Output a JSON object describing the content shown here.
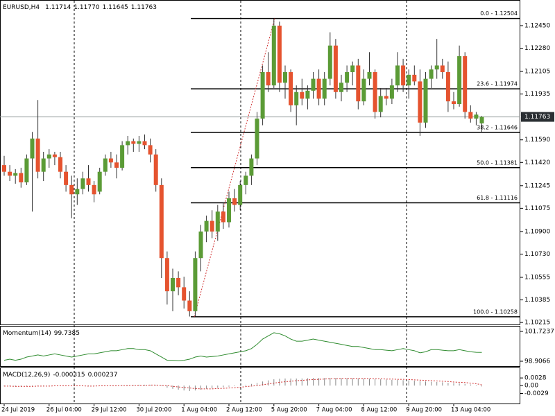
{
  "chart_data": [
    {
      "type": "candlestick",
      "title": "EURUSD,H4",
      "ohlc_labels": [
        "1.11714",
        "1.11770",
        "1.11645",
        "1.11763"
      ],
      "categories": [
        "24 Jul 2019",
        null,
        null,
        null,
        null,
        null,
        null,
        null,
        "26 Jul 04:00",
        null,
        null,
        null,
        null,
        null,
        null,
        null,
        "29 Jul 12:00",
        null,
        null,
        null,
        null,
        null,
        null,
        null,
        "30 Jul 20:00",
        null,
        null,
        null,
        null,
        null,
        null,
        null,
        "1 Aug 04:00",
        null,
        null,
        null,
        null,
        null,
        null,
        null,
        "2 Aug 12:00",
        null,
        null,
        null,
        null,
        null,
        null,
        null,
        "5 Aug 20:00",
        null,
        null,
        null,
        null,
        null,
        null,
        null,
        "7 Aug 04:00",
        null,
        null,
        null,
        null,
        null,
        null,
        null,
        "8 Aug 12:00",
        null,
        null,
        null,
        null,
        null,
        null,
        null,
        "9 Aug 20:00",
        null,
        null,
        null,
        null,
        null,
        null,
        null,
        "13 Aug 04:00",
        null,
        null,
        null,
        null,
        null
      ],
      "open": [
        1.114,
        1.1135,
        1.1132,
        1.1134,
        1.1127,
        1.1145,
        1.116,
        1.1135,
        1.1145,
        1.1148,
        1.1146,
        1.1135,
        1.1125,
        1.1118,
        1.1122,
        1.113,
        1.1125,
        1.112,
        1.1135,
        1.1145,
        1.1142,
        1.1138,
        1.1155,
        1.1158,
        1.1156,
        1.1158,
        1.1155,
        1.1148,
        1.1125,
        1.107,
        1.1045,
        1.1055,
        1.1048,
        1.1038,
        1.103,
        1.107,
        1.109,
        1.1098,
        1.109,
        1.1105,
        1.1097,
        1.1115,
        1.111,
        1.1125,
        1.1132,
        1.1145,
        1.1175,
        1.121,
        1.12,
        1.1245,
        1.1202,
        1.121,
        1.1185,
        1.1195,
        1.119,
        1.1196,
        1.1205,
        1.119,
        1.1205,
        1.123,
        1.1195,
        1.1202,
        1.121,
        1.1215,
        1.1188,
        1.1205,
        1.121,
        1.118,
        1.1192,
        1.119,
        1.12,
        1.1215,
        1.12,
        1.1208,
        1.1203,
        1.1172,
        1.1205,
        1.1212,
        1.1215,
        1.121,
        1.1188,
        1.1186,
        1.1222,
        1.118,
        1.1175,
        1.11714
      ],
      "high": [
        1.1147,
        1.114,
        1.1137,
        1.1138,
        1.1148,
        1.1165,
        1.1189,
        1.115,
        1.1152,
        1.115,
        1.115,
        1.114,
        1.1132,
        1.113,
        1.1135,
        1.114,
        1.1128,
        1.1138,
        1.1148,
        1.115,
        1.1148,
        1.1158,
        1.1162,
        1.116,
        1.1162,
        1.1163,
        1.116,
        1.1152,
        1.113,
        1.1075,
        1.1062,
        1.106,
        1.1056,
        1.1045,
        1.1075,
        1.1095,
        1.1102,
        1.1106,
        1.111,
        1.1112,
        1.112,
        1.1122,
        1.1128,
        1.1135,
        1.1148,
        1.118,
        1.1215,
        1.1225,
        1.125,
        1.1248,
        1.1215,
        1.1212,
        1.12,
        1.1205,
        1.12,
        1.121,
        1.1212,
        1.121,
        1.124,
        1.1235,
        1.1208,
        1.1215,
        1.1218,
        1.122,
        1.1212,
        1.1225,
        1.1212,
        1.1198,
        1.1198,
        1.1205,
        1.1225,
        1.122,
        1.1212,
        1.1215,
        1.1212,
        1.121,
        1.1215,
        1.1235,
        1.122,
        1.1218,
        1.1195,
        1.123,
        1.1225,
        1.1185,
        1.118,
        1.1177
      ],
      "low": [
        1.1132,
        1.1128,
        1.1126,
        1.1123,
        1.1125,
        1.1105,
        1.113,
        1.1128,
        1.1138,
        1.114,
        1.113,
        1.112,
        1.11,
        1.111,
        1.1118,
        1.112,
        1.1112,
        1.1118,
        1.1132,
        1.1138,
        1.113,
        1.1136,
        1.1148,
        1.115,
        1.115,
        1.1152,
        1.1142,
        1.112,
        1.1055,
        1.1035,
        1.103,
        1.1042,
        1.1032,
        1.1026,
        1.1026,
        1.106,
        1.1082,
        1.1085,
        1.1083,
        1.1092,
        1.1093,
        1.1105,
        1.1106,
        1.1118,
        1.1125,
        1.114,
        1.117,
        1.1195,
        1.1198,
        1.1195,
        1.119,
        1.118,
        1.117,
        1.1185,
        1.1182,
        1.119,
        1.1185,
        1.1185,
        1.12,
        1.119,
        1.1188,
        1.1195,
        1.12,
        1.1182,
        1.1185,
        1.12,
        1.1175,
        1.1176,
        1.1185,
        1.1186,
        1.1195,
        1.1195,
        1.119,
        1.12,
        1.1162,
        1.1168,
        1.1198,
        1.1205,
        1.1205,
        1.118,
        1.1182,
        1.1184,
        1.1175,
        1.1172,
        1.117,
        1.11645
      ],
      "close": [
        1.1135,
        1.1132,
        1.1134,
        1.1127,
        1.1145,
        1.116,
        1.1135,
        1.1145,
        1.1148,
        1.1146,
        1.1135,
        1.1125,
        1.1118,
        1.1122,
        1.113,
        1.1125,
        1.1118,
        1.1135,
        1.1145,
        1.1142,
        1.1138,
        1.1155,
        1.1158,
        1.1156,
        1.1158,
        1.1155,
        1.1148,
        1.1125,
        1.107,
        1.1045,
        1.1055,
        1.1048,
        1.1038,
        1.103,
        1.107,
        1.109,
        1.1098,
        1.109,
        1.1105,
        1.1097,
        1.1115,
        1.111,
        1.1125,
        1.1132,
        1.1145,
        1.1175,
        1.121,
        1.12,
        1.1245,
        1.1202,
        1.121,
        1.1185,
        1.1195,
        1.119,
        1.1196,
        1.1205,
        1.119,
        1.1205,
        1.123,
        1.1195,
        1.1202,
        1.121,
        1.1215,
        1.1188,
        1.1205,
        1.121,
        1.118,
        1.1192,
        1.119,
        1.12,
        1.1215,
        1.12,
        1.1208,
        1.1203,
        1.1172,
        1.1205,
        1.1212,
        1.1215,
        1.121,
        1.1188,
        1.1186,
        1.1222,
        1.118,
        1.1175,
        1.1178,
        1.11763
      ],
      "up_color": "#5b9b36",
      "down_color": "#e5532f",
      "ylim": [
        1.102,
        1.12643
      ],
      "yticks": [
        {
          "value": 1.1245,
          "label": "1.12450"
        },
        {
          "value": 1.1228,
          "label": "1.12280"
        },
        {
          "value": 1.12105,
          "label": "1.12105"
        },
        {
          "value": 1.11935,
          "label": "1.11935"
        },
        {
          "value": 1.1159,
          "label": "1.11590"
        },
        {
          "value": 1.1142,
          "label": "1.11420"
        },
        {
          "value": 1.11245,
          "label": "1.11245"
        },
        {
          "value": 1.11075,
          "label": "1.11075"
        },
        {
          "value": 1.109,
          "label": "1.10900"
        },
        {
          "value": 1.1073,
          "label": "1.10730"
        },
        {
          "value": 1.10555,
          "label": "1.10555"
        },
        {
          "value": 1.10385,
          "label": "1.10385"
        },
        {
          "value": 1.10215,
          "label": "1.10215"
        }
      ],
      "fib_levels": [
        {
          "value": 1.12504,
          "label": "0.0 - 1.12504"
        },
        {
          "value": 1.11974,
          "label": "23.6 - 1.11974"
        },
        {
          "value": 1.11646,
          "label": "38.2 - 1.11646"
        },
        {
          "value": 1.11381,
          "label": "50.0 - 1.11381"
        },
        {
          "value": 1.11116,
          "label": "61.8 - 1.11116"
        },
        {
          "value": 1.10258,
          "label": "100.0 - 1.10258"
        }
      ]
    },
    {
      "type": "line",
      "title": "Momentum(14)",
      "color": "#2e8b2e",
      "values": [
        99.0,
        99.1,
        99.0,
        99.1,
        99.3,
        99.4,
        99.5,
        99.4,
        99.5,
        99.6,
        99.5,
        99.4,
        99.3,
        99.4,
        99.5,
        99.6,
        99.6,
        99.7,
        99.8,
        99.9,
        99.9,
        100.0,
        100.1,
        100.1,
        100.0,
        100.0,
        99.9,
        99.6,
        99.3,
        99.0,
        99.0,
        98.95,
        99.0,
        99.1,
        99.3,
        99.4,
        99.3,
        99.35,
        99.4,
        99.5,
        99.6,
        99.7,
        99.8,
        99.9,
        100.1,
        100.5,
        101.0,
        101.3,
        101.6,
        101.5,
        101.3,
        101.0,
        100.8,
        100.8,
        100.9,
        101.0,
        100.9,
        100.8,
        100.7,
        100.6,
        100.5,
        100.4,
        100.3,
        100.3,
        100.2,
        100.1,
        100.0,
        100.0,
        99.95,
        99.9,
        100.0,
        100.1,
        100.0,
        99.9,
        99.7,
        99.8,
        100.0,
        100.0,
        99.95,
        99.9,
        99.9,
        100.0,
        99.9,
        99.8,
        99.75,
        99.7385
      ],
      "ylim": [
        98.3825,
        102.1823
      ],
      "yticks": [
        101.7237,
        98.9066
      ]
    },
    {
      "type": "macd",
      "title": "MACD(12,26,9)",
      "color": "#888888",
      "signal_color": "#d03030",
      "values": [
        -0.0003,
        -0.0003,
        -0.0004,
        -0.0004,
        -0.0003,
        -0.0002,
        -0.0001,
        -0.0001,
        0.0,
        0.0,
        0.0,
        -0.0001,
        -0.0002,
        -0.0002,
        -0.0002,
        -0.0002,
        -0.0002,
        -0.0001,
        0.0,
        0.0,
        0.0,
        0.0001,
        0.0002,
        0.0002,
        0.0003,
        0.0003,
        0.0003,
        0.0002,
        -0.0002,
        -0.0008,
        -0.0012,
        -0.0015,
        -0.0018,
        -0.002,
        -0.0018,
        -0.0015,
        -0.0012,
        -0.001,
        -0.0008,
        -0.0006,
        -0.0004,
        -0.0002,
        0.0,
        0.0003,
        0.0006,
        0.001,
        0.0015,
        0.0019,
        0.0023,
        0.0025,
        0.0026,
        0.0026,
        0.0026,
        0.0026,
        0.0027,
        0.0028,
        0.0028,
        0.0028,
        0.0028,
        0.0028,
        0.0027,
        0.0027,
        0.0027,
        0.0026,
        0.0026,
        0.0025,
        0.0024,
        0.0023,
        0.0022,
        0.0021,
        0.0021,
        0.002,
        0.0019,
        0.0018,
        0.0016,
        0.0015,
        0.0014,
        0.0013,
        0.0012,
        0.001,
        0.0009,
        0.0008,
        0.0006,
        0.0004,
        0.0002,
        -0.000315
      ],
      "signal": [
        -0.0002,
        -0.0002,
        -0.0003,
        -0.0003,
        -0.0003,
        -0.0003,
        -0.0002,
        -0.0002,
        -0.0002,
        -0.0001,
        -0.0001,
        -0.0001,
        -0.0001,
        -0.0001,
        -0.0001,
        -0.0002,
        -0.0002,
        -0.0001,
        -0.0001,
        -0.0001,
        -0.0001,
        0.0,
        0.0,
        0.0001,
        0.0001,
        0.0001,
        0.0002,
        0.0002,
        0.0001,
        0.0,
        -0.0003,
        -0.0005,
        -0.0007,
        -0.0009,
        -0.0011,
        -0.0012,
        -0.0012,
        -0.0012,
        -0.0011,
        -0.001,
        -0.0009,
        -0.0008,
        -0.0006,
        -0.0004,
        -0.0002,
        0.0,
        0.0003,
        0.0006,
        0.0009,
        0.0012,
        0.0014,
        0.0016,
        0.0018,
        0.0019,
        0.0021,
        0.0022,
        0.0023,
        0.0024,
        0.0025,
        0.0025,
        0.0026,
        0.0026,
        0.0026,
        0.0026,
        0.0026,
        0.0026,
        0.0025,
        0.0025,
        0.0024,
        0.0024,
        0.0023,
        0.0023,
        0.0022,
        0.0021,
        0.002,
        0.0019,
        0.0018,
        0.0017,
        0.0016,
        0.0015,
        0.0013,
        0.0012,
        0.0011,
        0.0009,
        0.0007,
        0.000237
      ],
      "ylim": [
        -0.0066,
        0.0064
      ],
      "yticks": [
        0.0028,
        {
          "value": 0,
          "label": "0.00"
        },
        -0.0029
      ]
    }
  ]
}
